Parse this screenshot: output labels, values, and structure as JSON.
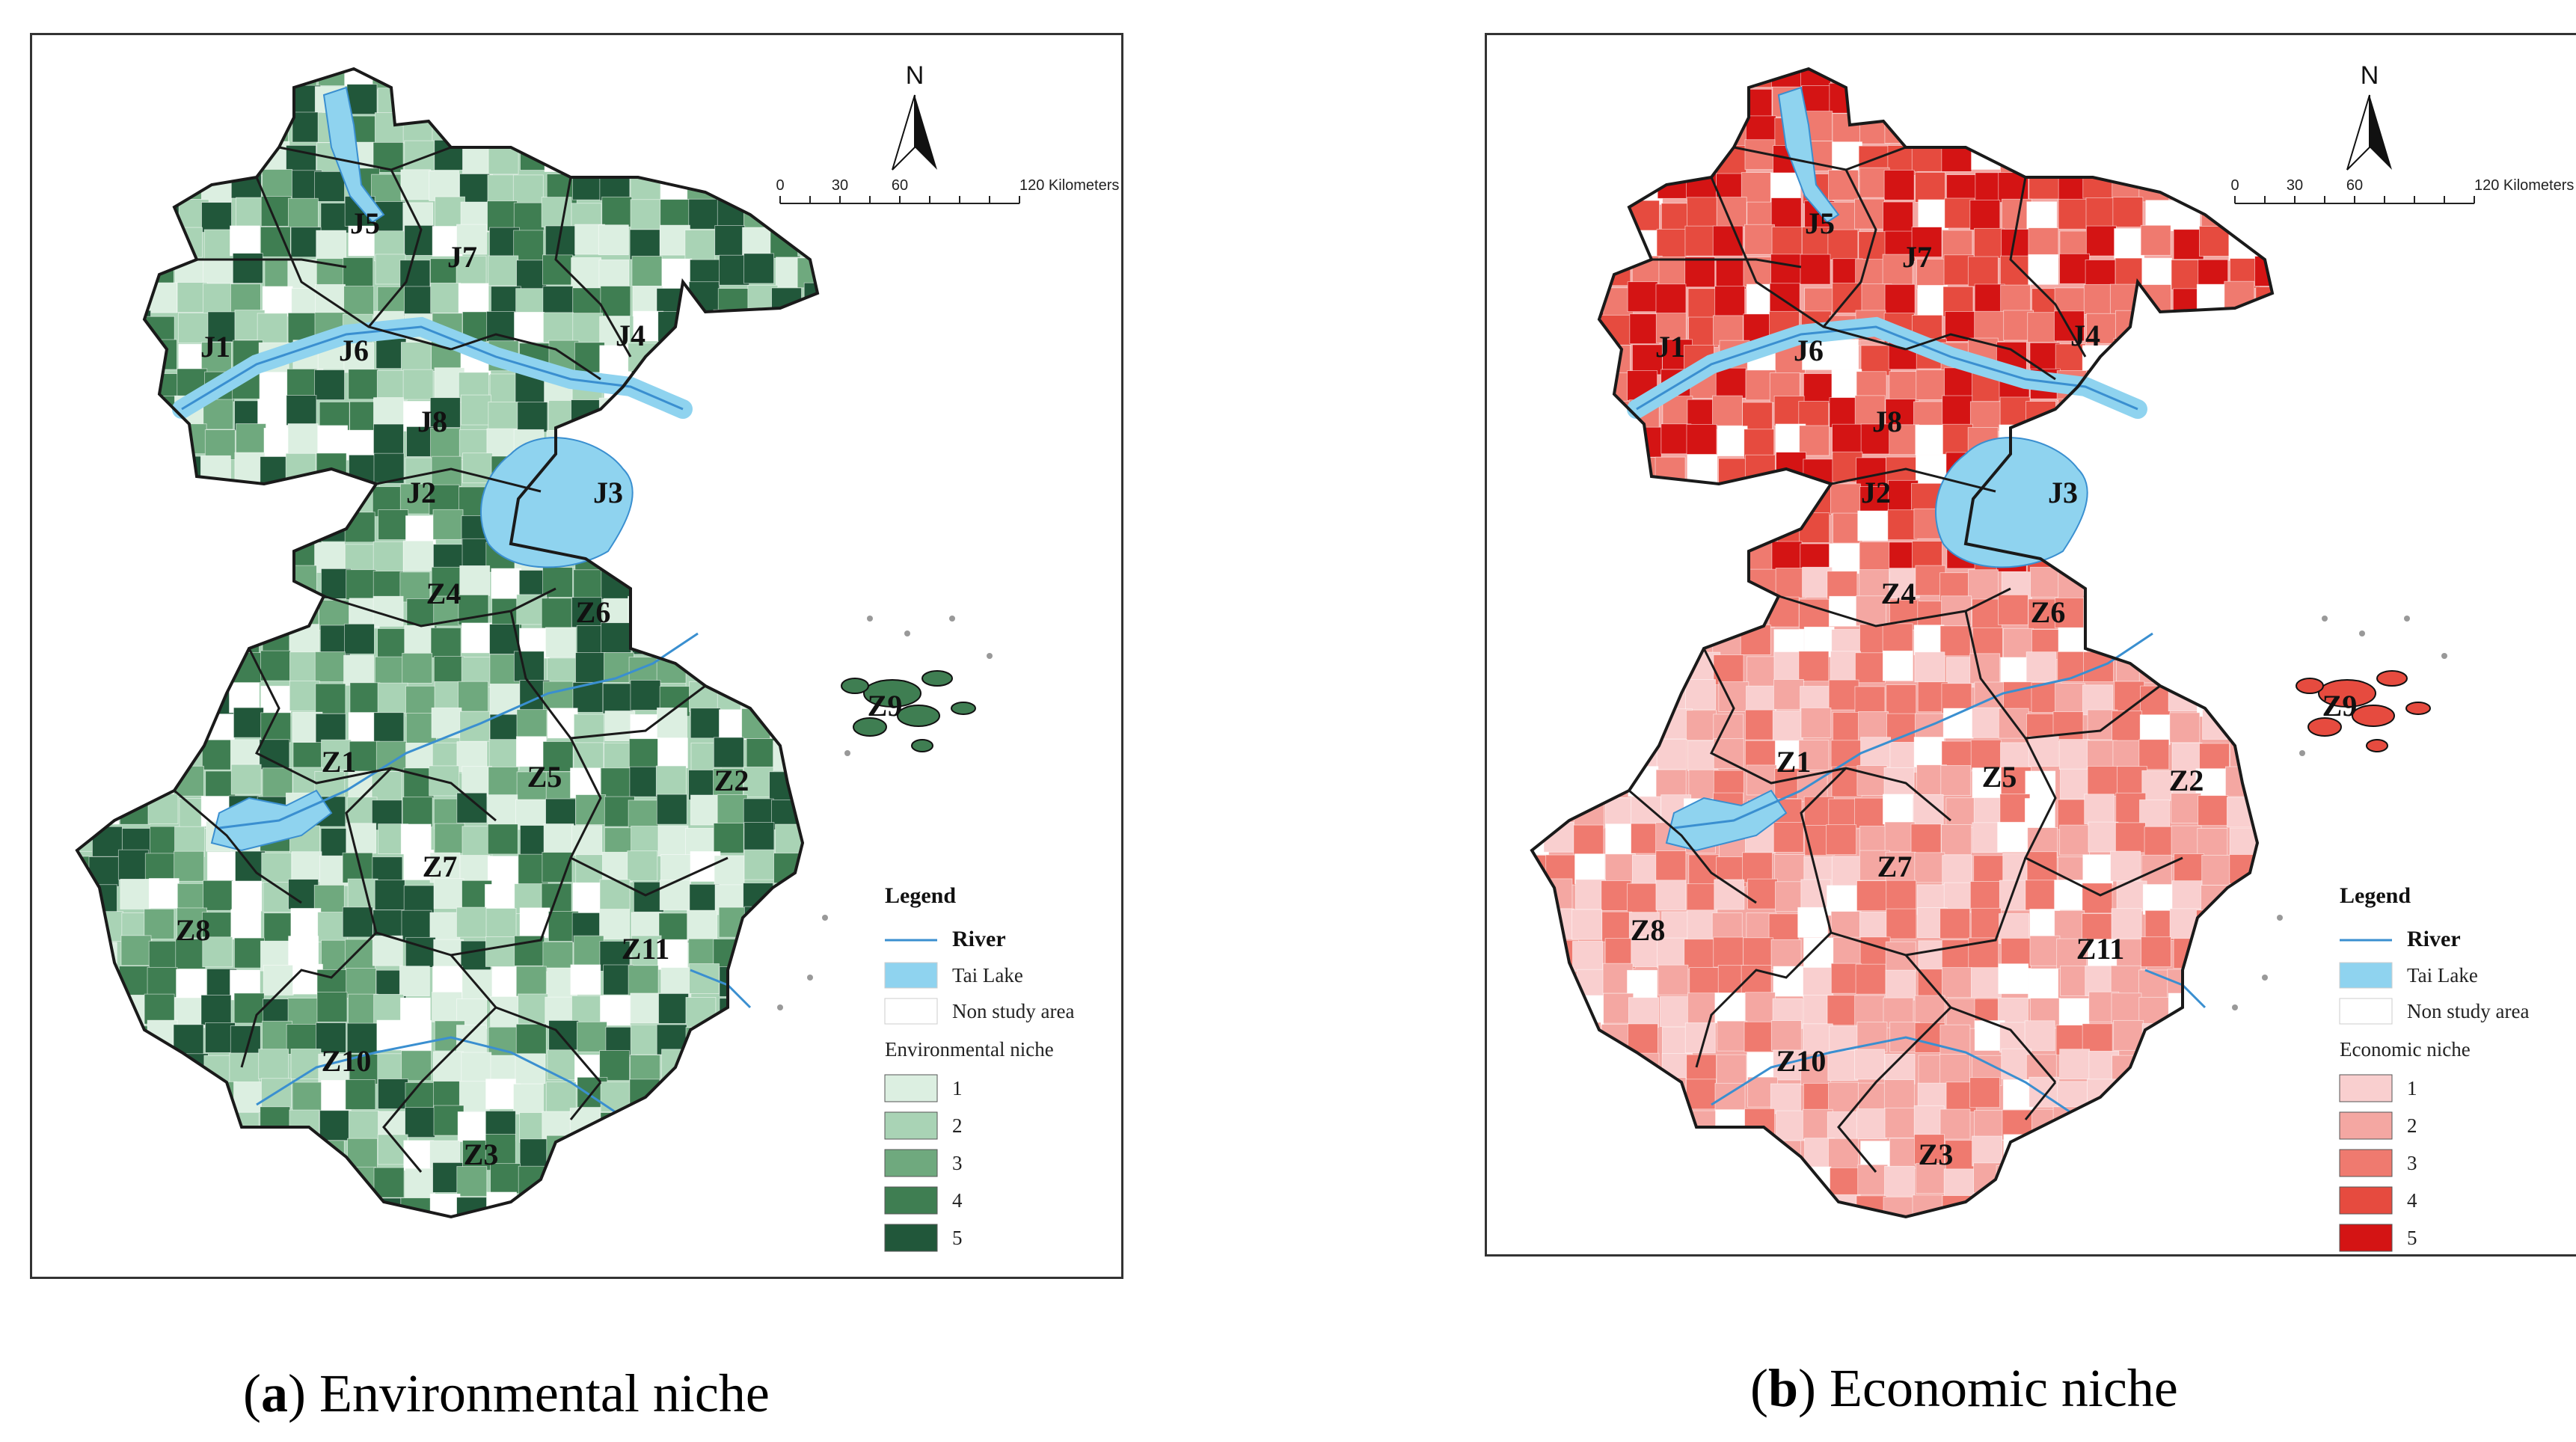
{
  "panels": [
    {
      "id": "a",
      "caption_letter": "a",
      "caption_text": "Environmental niche",
      "palette": [
        "#dcefe1",
        "#a9d3b5",
        "#6fa97e",
        "#3f7e52",
        "#21573a"
      ],
      "legend": {
        "title": "Legend",
        "river": "River",
        "lake": "Tai Lake",
        "non_study": "Non study area",
        "niche_title": "Environmental niche",
        "classes": [
          "1",
          "2",
          "3",
          "4",
          "5"
        ]
      }
    },
    {
      "id": "b",
      "caption_letter": "b",
      "caption_text": "Economic niche",
      "palette": [
        "#f9cfcf",
        "#f4a7a2",
        "#ef7a6f",
        "#e64b3f",
        "#d41414"
      ],
      "legend": {
        "title": "Legend",
        "river": "River",
        "lake": "Tai Lake",
        "non_study": "Non study area",
        "niche_title": "Economic niche",
        "classes": [
          "1",
          "2",
          "3",
          "4",
          "5"
        ]
      }
    }
  ],
  "north_label": "N",
  "scale_ticks": [
    "0",
    "30",
    "60",
    "120 Kilometers"
  ],
  "zones": [
    "J1",
    "J2",
    "J3",
    "J4",
    "J5",
    "J6",
    "J7",
    "J8",
    "Z1",
    "Z2",
    "Z3",
    "Z4",
    "Z5",
    "Z6",
    "Z7",
    "Z8",
    "Z9",
    "Z10",
    "Z11"
  ],
  "colors": {
    "lake": "#8fd3ef",
    "river": "#3a8fd0",
    "boundary": "#1a1a1a",
    "frame": "#333333"
  }
}
